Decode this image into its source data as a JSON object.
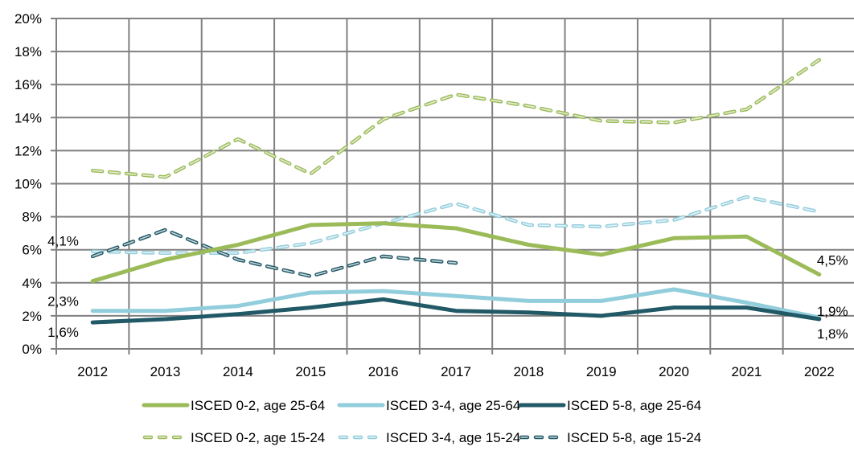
{
  "chart_data": {
    "type": "line",
    "title": "",
    "xlabel": "",
    "ylabel": "",
    "categories": [
      "2012",
      "2013",
      "2014",
      "2015",
      "2016",
      "2017",
      "2018",
      "2019",
      "2020",
      "2021",
      "2022"
    ],
    "ylim": [
      0,
      20
    ],
    "yticks": [
      0,
      2,
      4,
      6,
      8,
      10,
      12,
      14,
      16,
      18,
      20
    ],
    "ytick_labels": [
      "0%",
      "2%",
      "4%",
      "6%",
      "8%",
      "10%",
      "12%",
      "14%",
      "16%",
      "18%",
      "20%"
    ],
    "grid": true,
    "legend_position": "bottom",
    "series": [
      {
        "name": "ISCED 0-2, age 25-64",
        "style": "solid",
        "color": "#9BBB59",
        "values": [
          4.1,
          5.4,
          6.3,
          7.5,
          7.6,
          7.3,
          6.3,
          5.7,
          6.7,
          6.8,
          4.5
        ]
      },
      {
        "name": "ISCED 3-4, age 25-64",
        "style": "solid",
        "color": "#92CDDC",
        "values": [
          2.3,
          2.3,
          2.6,
          3.4,
          3.5,
          3.2,
          2.9,
          2.9,
          3.6,
          2.8,
          1.9
        ]
      },
      {
        "name": "ISCED 5-8, age 25-64",
        "style": "solid",
        "color": "#215967",
        "values": [
          1.6,
          1.8,
          2.1,
          2.5,
          3.0,
          2.3,
          2.2,
          2.0,
          2.5,
          2.5,
          1.8
        ]
      },
      {
        "name": "ISCED 0-2, age 15-24",
        "style": "dashed",
        "color": "#9BBB59",
        "values": [
          10.8,
          10.4,
          12.7,
          10.6,
          13.9,
          15.4,
          14.7,
          13.8,
          13.7,
          14.5,
          17.5
        ]
      },
      {
        "name": "ISCED 3-4, age 15-24",
        "style": "dashed",
        "color": "#92CDDC",
        "values": [
          5.9,
          5.8,
          5.8,
          6.4,
          7.6,
          8.8,
          7.5,
          7.4,
          7.8,
          9.2,
          8.3
        ]
      },
      {
        "name": "ISCED 5-8, age 15-24",
        "style": "dashed",
        "color": "#215967",
        "values": [
          5.6,
          7.2,
          5.4,
          4.4,
          5.6,
          5.2,
          null,
          null,
          null,
          null,
          null
        ]
      }
    ],
    "annotations": [
      {
        "text": "4,1%",
        "series": 0,
        "category": "2012",
        "side": "left"
      },
      {
        "text": "2,3%",
        "series": 1,
        "category": "2012",
        "side": "left"
      },
      {
        "text": "1,6%",
        "series": 2,
        "category": "2012",
        "side": "left"
      },
      {
        "text": "4,5%",
        "series": 0,
        "category": "2022",
        "side": "right"
      },
      {
        "text": "1,9%",
        "series": 1,
        "category": "2022",
        "side": "right"
      },
      {
        "text": "1,8%",
        "series": 2,
        "category": "2022",
        "side": "right"
      }
    ]
  }
}
